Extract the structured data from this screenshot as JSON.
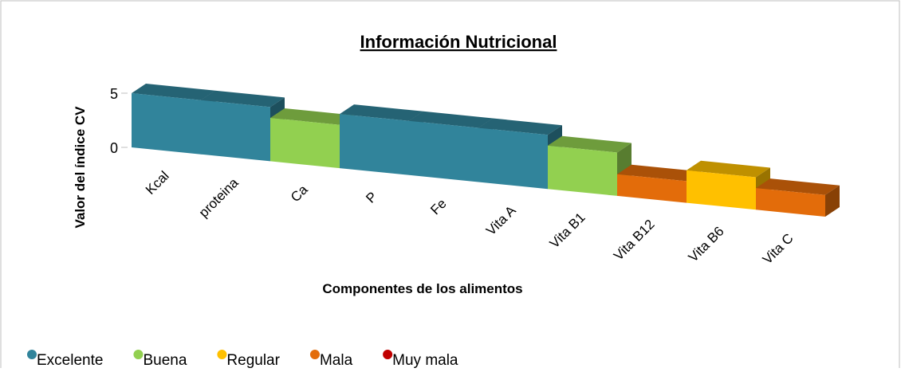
{
  "chart_data": {
    "type": "bar3d",
    "title": "Información Nutricional",
    "x_label": "Componentes de los alimentos",
    "y_label": "Valor del índice CV",
    "categories": [
      "Kcal",
      "proteina",
      "Ca",
      "P",
      "Fe",
      "Vita A",
      "Vita B1",
      "Vita B12",
      "Vita B6",
      "Vita C"
    ],
    "values": [
      5,
      5,
      4,
      5,
      5,
      5,
      4,
      2,
      3,
      2
    ],
    "colors": [
      "#31849b",
      "#31849b",
      "#92d050",
      "#31849b",
      "#31849b",
      "#31849b",
      "#92d050",
      "#e36c0a",
      "#ffc000",
      "#e36c0a"
    ],
    "ylim": [
      0,
      5
    ],
    "yticks": [
      0,
      5
    ],
    "legend": [
      {
        "name": "Excelente",
        "color": "#31849b"
      },
      {
        "name": "Buena",
        "color": "#92d050"
      },
      {
        "name": "Regular",
        "color": "#ffc000"
      },
      {
        "name": "Mala",
        "color": "#e36c0a"
      },
      {
        "name": "Muy mala",
        "color": "#c00000"
      }
    ]
  }
}
